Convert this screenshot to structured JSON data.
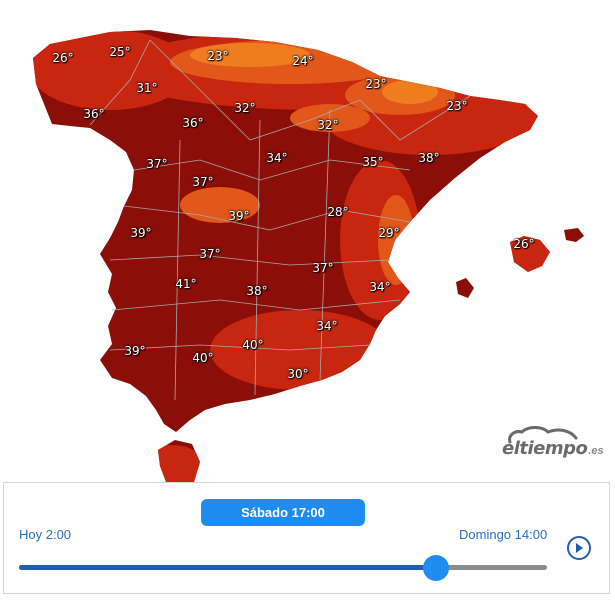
{
  "map": {
    "colors": {
      "hot": "#8b0e08",
      "warm": "#c8260f",
      "mild": "#e2571a",
      "cool": "#ef7d1f",
      "border": "#a9a9a9"
    },
    "temperatures": [
      "26°",
      "25°",
      "23°",
      "24°",
      "23°",
      "23°",
      "31°",
      "36°",
      "36°",
      "32°",
      "32°",
      "34°",
      "35°",
      "38°",
      "37°",
      "37°",
      "39°",
      "28°",
      "29°",
      "26°",
      "39°",
      "37°",
      "37°",
      "41°",
      "38°",
      "34°",
      "34°",
      "40°",
      "39°",
      "40°",
      "30°"
    ]
  },
  "watermark": {
    "text": "eltiempo",
    "tld": ".es"
  },
  "controls": {
    "day_label": "Sábado 17:00",
    "start_label": "Hoy 2:00",
    "end_label": "Domingo 14:00",
    "progress": 0.79
  }
}
